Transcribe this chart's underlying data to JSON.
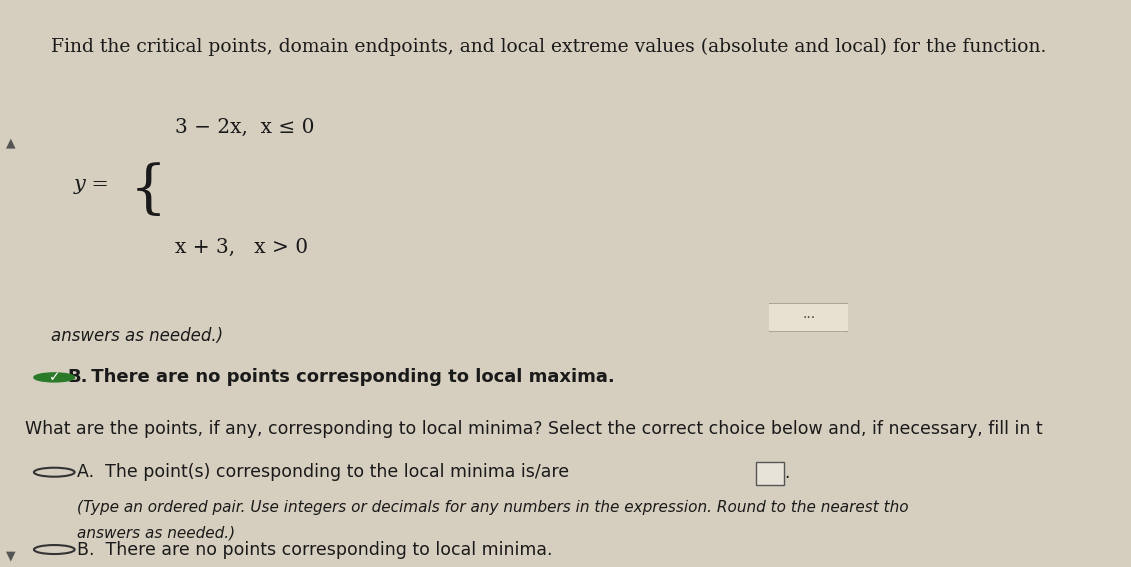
{
  "background_color": "#d6cfc0",
  "top_section_bg": "#d6cfc0",
  "bottom_section_bg": "#ccc5b5",
  "title": "Find the critical points, domain endpoints, and local extreme values (absolute and local) for the function.",
  "title_fontsize": 13.5,
  "function_label": "y =",
  "function_line1": "3 − 2x,  x ≤ 0",
  "function_line2": "x + 3,   x > 0",
  "separator_color": "#999080",
  "dots_button_color": "#e8e0d0",
  "partial_text": "answers as needed.)",
  "choice_B_maxima_checked": true,
  "choice_B_maxima_text": "B.  There are no points corresponding to local maxima.",
  "question2": "What are the points, if any, corresponding to local minima? Select the correct choice below and, if necessary, fill in t",
  "choice_A_minima_text": "A.  The point(s) corresponding to the local minima is/are",
  "choice_A_subtext1": "(Type an ordered pair. Use integers or decimals for any numbers in the expression. Round to the nearest tho",
  "choice_A_subtext2": "answers as needed.)",
  "choice_B_minima_text": "B.  There are no points corresponding to local minima.",
  "left_bar_color": "#5a7a5a",
  "arrow_up_color": "#555555",
  "arrow_down_color": "#555555",
  "font_color_main": "#1a1a1a",
  "font_color_secondary": "#1a1a1a"
}
